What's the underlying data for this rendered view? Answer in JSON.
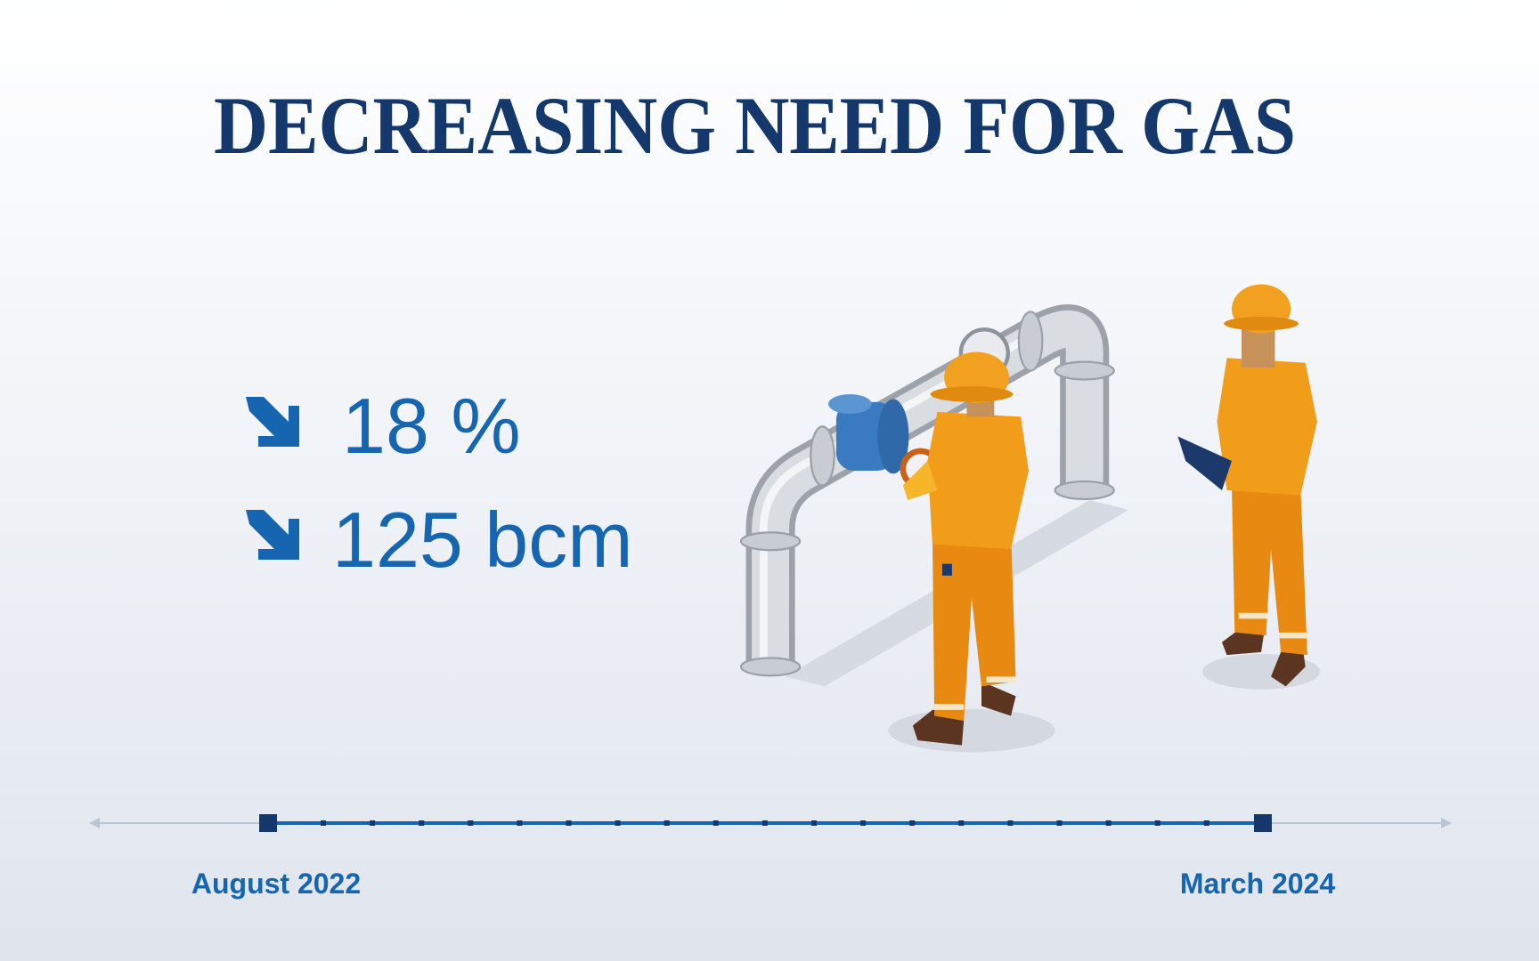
{
  "header": {
    "title": "DECREASING NEED FOR GAS"
  },
  "stats": [
    "18 %",
    "125 bcm"
  ],
  "timeline": {
    "start": "August 2022",
    "end": "March 2024"
  }
}
